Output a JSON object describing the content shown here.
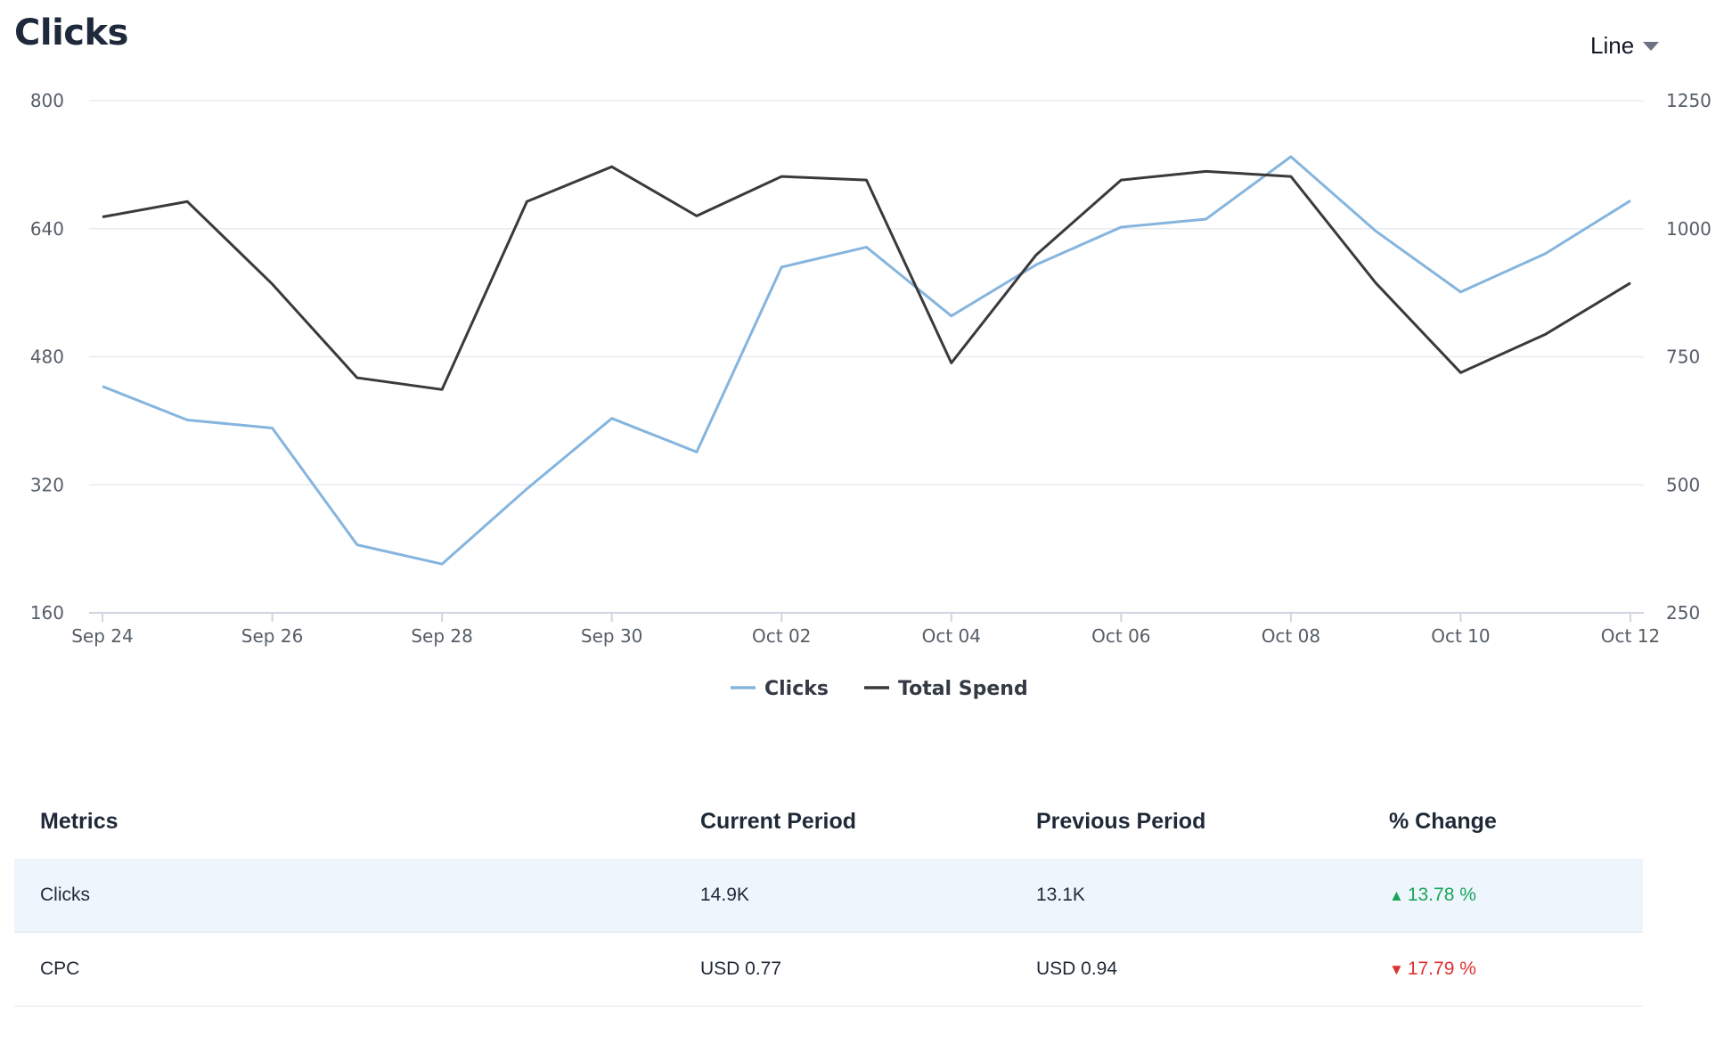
{
  "page": {
    "title": "Clicks",
    "view_selector": "Line"
  },
  "chart_data": {
    "type": "line",
    "x": [
      "Sep 24",
      "Sep 25",
      "Sep 26",
      "Sep 27",
      "Sep 28",
      "Sep 29",
      "Sep 30",
      "Oct 01",
      "Oct 02",
      "Oct 03",
      "Oct 04",
      "Oct 05",
      "Oct 06",
      "Oct 07",
      "Oct 08",
      "Oct 09",
      "Oct 10",
      "Oct 11",
      "Oct 12"
    ],
    "x_tick_labels": [
      "Sep 24",
      "Sep 26",
      "Sep 28",
      "Sep 30",
      "Oct 02",
      "Oct 04",
      "Oct 06",
      "Oct 08",
      "Oct 10",
      "Oct 12"
    ],
    "series": [
      {
        "name": "Clicks",
        "axis": "left",
        "color": "#85b5de",
        "values": [
          443,
          401,
          391,
          245,
          221,
          315,
          403,
          361,
          592,
          617,
          531,
          595,
          642,
          652,
          730,
          637,
          561,
          609,
          675
        ]
      },
      {
        "name": "Total Spend",
        "axis": "right",
        "color": "#3a3a3c",
        "values": [
          1023,
          1053,
          892,
          709,
          686,
          1053,
          1121,
          1025,
          1102,
          1095,
          738,
          949,
          1095,
          1112,
          1102,
          894,
          719,
          794,
          894
        ]
      }
    ],
    "y_left": {
      "ticks": [
        160,
        320,
        480,
        640,
        800
      ],
      "lim": [
        160,
        800
      ]
    },
    "y_right": {
      "ticks": [
        250,
        500,
        750,
        1000,
        1250
      ],
      "lim": [
        250,
        1250
      ]
    },
    "grid": true,
    "legend_position": "bottom-center"
  },
  "table": {
    "headers": [
      "Metrics",
      "Current Period",
      "Previous Period",
      "% Change"
    ],
    "rows": [
      {
        "metric": "Clicks",
        "current": "14.9K",
        "previous": "13.1K",
        "change": "13.78 %",
        "direction": "up"
      },
      {
        "metric": "CPC",
        "current": "USD 0.77",
        "previous": "USD 0.94",
        "change": "17.79 %",
        "direction": "down"
      }
    ]
  },
  "colors": {
    "up": "#1aa55a",
    "down": "#e03131",
    "highlight_row": "#eef5fd"
  }
}
